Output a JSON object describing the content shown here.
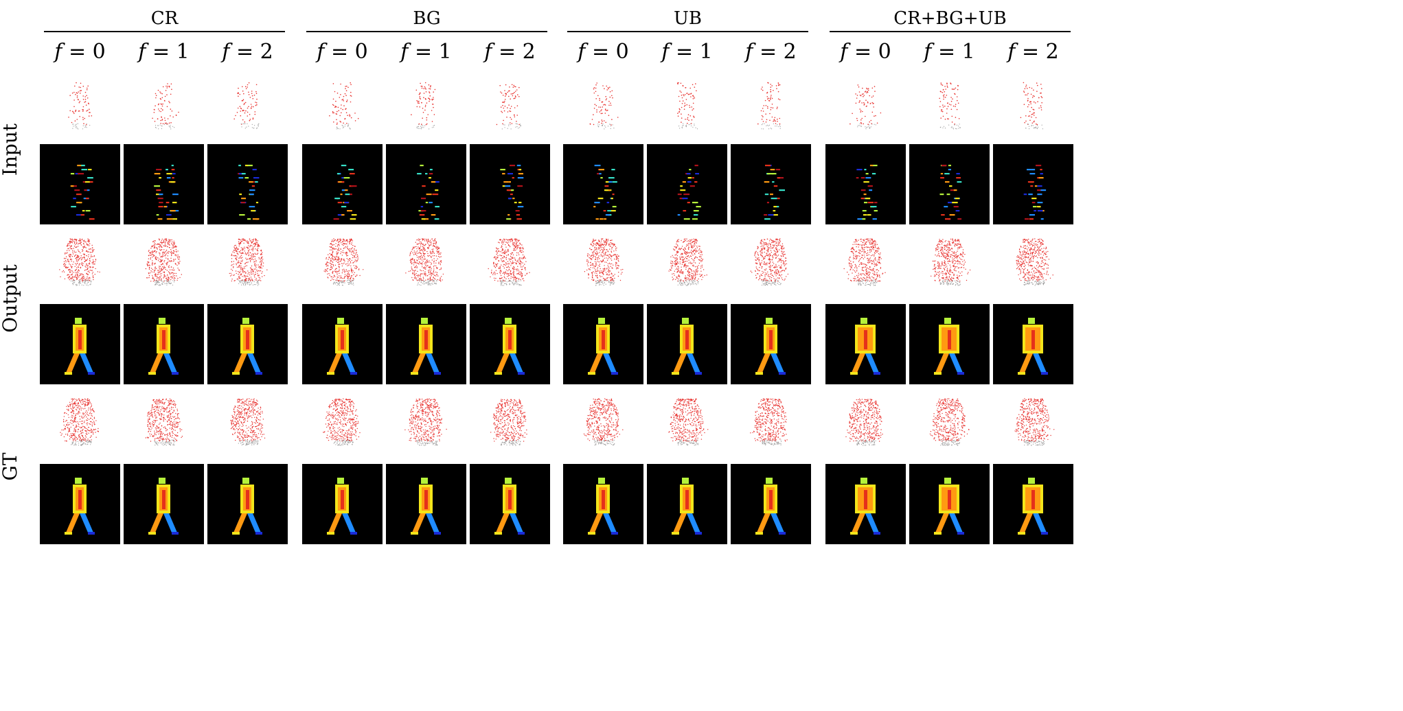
{
  "groups": [
    {
      "title": "CR"
    },
    {
      "title": "BG"
    },
    {
      "title": "UB"
    },
    {
      "title": "CR+BG+UB"
    }
  ],
  "frames": [
    {
      "label_var": "f",
      "label_eq": " = 0"
    },
    {
      "label_var": "f",
      "label_eq": " = 1"
    },
    {
      "label_var": "f",
      "label_eq": " = 2"
    }
  ],
  "row_labels": {
    "input": "Input",
    "output": "Output",
    "gt": "GT"
  },
  "colors": {
    "point_red": "#e8322f",
    "point_gray": "#9a9a9a",
    "panel_bg": "#000000",
    "depth_colormap": [
      "#1a2bd8",
      "#1f8cff",
      "#37e0c8",
      "#b6f23b",
      "#f3e51a",
      "#ff9a12",
      "#e5301b",
      "#b0121a"
    ]
  }
}
